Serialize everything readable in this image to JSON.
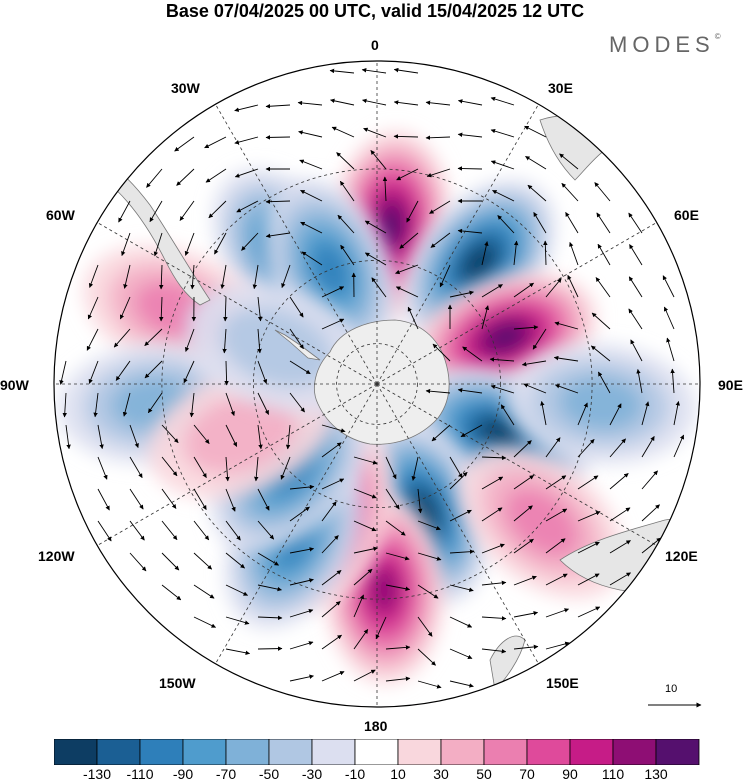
{
  "title": "Base 07/04/2025 00 UTC, valid 15/04/2025 12 UTC",
  "brand": "MODES",
  "brand_mark": "©",
  "map": {
    "projection": "south polar stereographic",
    "longitude_labels": {
      "top": "0",
      "upper_right": "30E",
      "right_upper": "60E",
      "right": "90E",
      "right_lower": "120E",
      "lower_right": "150E",
      "bottom": "180",
      "lower_left": "150W",
      "left_lower": "120W",
      "left": "90W",
      "left_upper": "60W",
      "upper_left": "30W"
    },
    "vector_scale_label": "10",
    "anomaly_cells": [
      {
        "lon": 5,
        "lat": -52,
        "value": 115
      },
      {
        "lon": 40,
        "lat": -52,
        "value": -125
      },
      {
        "lon": 70,
        "lat": -57,
        "value": 120
      },
      {
        "lon": 112,
        "lat": -58,
        "value": -122
      },
      {
        "lon": 160,
        "lat": -57,
        "value": -112
      },
      {
        "lon": 178,
        "lat": -42,
        "value": 105
      },
      {
        "lon": -160,
        "lat": -56,
        "value": 78
      },
      {
        "lon": -152,
        "lat": -48,
        "value": -82
      },
      {
        "lon": -135,
        "lat": -60,
        "value": -72
      },
      {
        "lon": -35,
        "lat": -52,
        "value": -78
      },
      {
        "lon": -22,
        "lat": -60,
        "value": -90
      },
      {
        "lon": -70,
        "lat": -40,
        "value": 40
      },
      {
        "lon": -95,
        "lat": -38,
        "value": -40
      },
      {
        "lon": 95,
        "lat": -38,
        "value": -50
      },
      {
        "lon": 130,
        "lat": -40,
        "value": 35
      },
      {
        "lon": -110,
        "lat": -55,
        "value": 28
      },
      {
        "lon": -70,
        "lat": -64,
        "value": -28
      }
    ]
  },
  "colorbar": {
    "colors": [
      "#0d3d63",
      "#1b5f94",
      "#2e7fba",
      "#4f9ccd",
      "#7fb1d8",
      "#b0c7e3",
      "#dcdff0",
      "#ffffff",
      "#f9d7dd",
      "#f3aec4",
      "#eb7fb0",
      "#df4a9b",
      "#c61c87",
      "#8e0e74",
      "#55106e"
    ],
    "tick_labels": [
      "-130",
      "-110",
      "-90",
      "-70",
      "-50",
      "-30",
      "-10",
      "10",
      "30",
      "50",
      "70",
      "90",
      "110",
      "130"
    ]
  }
}
